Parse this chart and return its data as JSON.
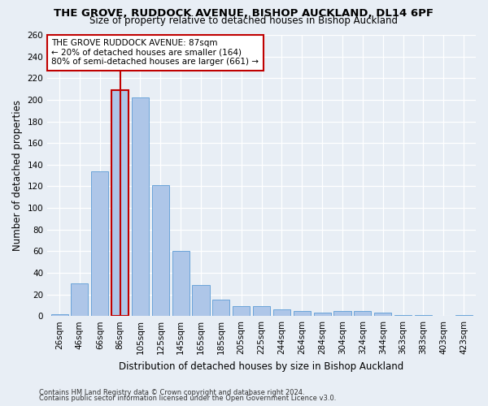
{
  "title1": "THE GROVE, RUDDOCK AVENUE, BISHOP AUCKLAND, DL14 6PF",
  "title2": "Size of property relative to detached houses in Bishop Auckland",
  "xlabel": "Distribution of detached houses by size in Bishop Auckland",
  "ylabel": "Number of detached properties",
  "footer1": "Contains HM Land Registry data © Crown copyright and database right 2024.",
  "footer2": "Contains public sector information licensed under the Open Government Licence v3.0.",
  "categories": [
    "26sqm",
    "46sqm",
    "66sqm",
    "86sqm",
    "105sqm",
    "125sqm",
    "145sqm",
    "165sqm",
    "185sqm",
    "205sqm",
    "225sqm",
    "244sqm",
    "264sqm",
    "284sqm",
    "304sqm",
    "324sqm",
    "344sqm",
    "363sqm",
    "383sqm",
    "403sqm",
    "423sqm"
  ],
  "values": [
    2,
    30,
    134,
    209,
    202,
    121,
    60,
    29,
    15,
    9,
    9,
    6,
    5,
    3,
    5,
    5,
    3,
    1,
    1,
    0,
    1
  ],
  "bar_color": "#aec6e8",
  "bar_edge_color": "#5b9bd5",
  "highlight_bar_index": 3,
  "highlight_color": "#c00000",
  "annotation_line1": "THE GROVE RUDDOCK AVENUE: 87sqm",
  "annotation_line2": "← 20% of detached houses are smaller (164)",
  "annotation_line3": "80% of semi-detached houses are larger (661) →",
  "annotation_box_color": "#ffffff",
  "annotation_box_edge_color": "#c00000",
  "ylim": [
    0,
    260
  ],
  "yticks": [
    0,
    20,
    40,
    60,
    80,
    100,
    120,
    140,
    160,
    180,
    200,
    220,
    240,
    260
  ],
  "bg_color": "#e8eef5",
  "grid_color": "#ffffff",
  "title_fontsize": 9.5,
  "subtitle_fontsize": 8.5,
  "axis_label_fontsize": 8.5,
  "tick_fontsize": 7.5,
  "footer_fontsize": 6.0,
  "annotation_fontsize": 7.5
}
